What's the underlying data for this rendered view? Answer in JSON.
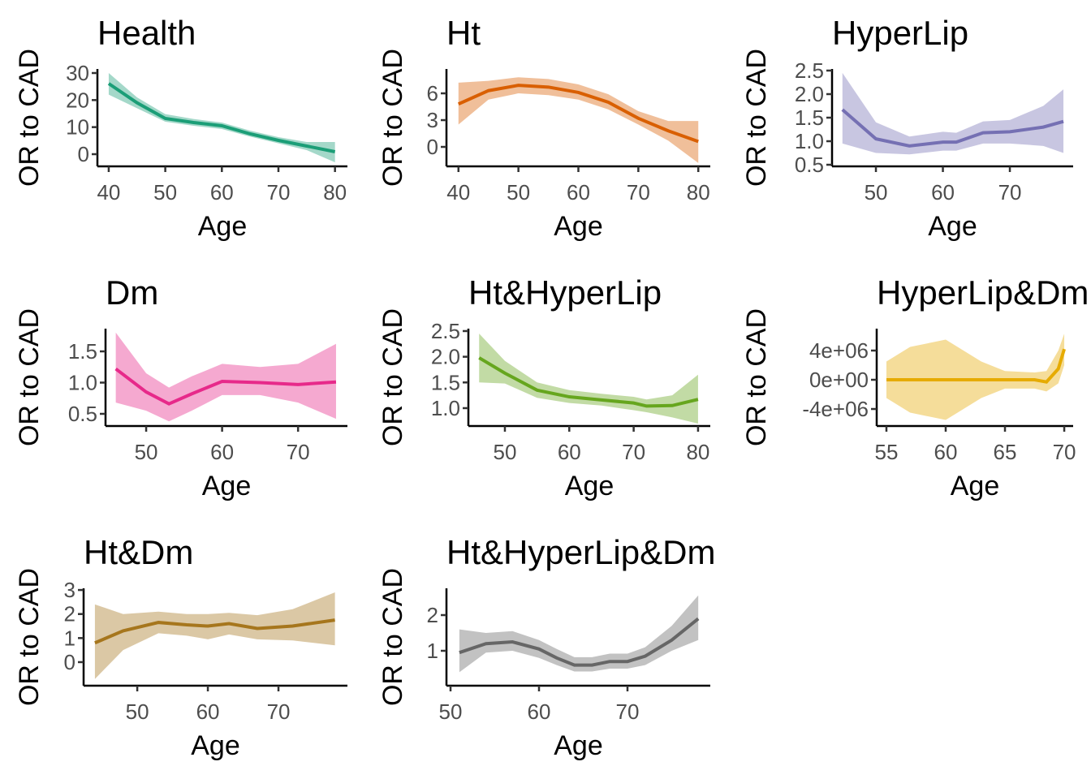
{
  "chart_data": [
    {
      "type": "line",
      "title": "Health",
      "xlabel": "Age",
      "ylabel": "OR to CAD",
      "color": "#1b9e77",
      "x": [
        40,
        45,
        50,
        55,
        60,
        65,
        70,
        75,
        80
      ],
      "values": [
        26.1,
        19,
        13.2,
        11.7,
        10.5,
        7.5,
        5.1,
        3,
        0.9
      ],
      "lower": [
        22,
        17,
        12,
        10.5,
        9.3,
        6.5,
        4,
        1.5,
        -3
      ],
      "upper": [
        30,
        21,
        14.8,
        13,
        11.7,
        8.7,
        6.3,
        4.5,
        4.5
      ],
      "xlim": [
        38,
        82.2
      ],
      "ylim": [
        -4.5,
        31.5
      ],
      "xticks": [
        40,
        50,
        60,
        70,
        80
      ],
      "yticks": [
        0,
        10,
        20,
        30
      ]
    },
    {
      "type": "line",
      "title": "Ht",
      "xlabel": "Age",
      "ylabel": "OR to CAD",
      "color": "#d95f02",
      "x": [
        40,
        45,
        50,
        55,
        60,
        65,
        70,
        75,
        80
      ],
      "values": [
        4.8,
        6.3,
        6.9,
        6.7,
        6.1,
        5.0,
        3.2,
        1.8,
        0.6
      ],
      "lower": [
        2.5,
        5.3,
        6.0,
        5.8,
        5.3,
        4.2,
        2.5,
        0.7,
        -1.8
      ],
      "upper": [
        7.2,
        7.4,
        7.8,
        7.6,
        7.0,
        5.9,
        4.0,
        2.9,
        2.9
      ],
      "xlim": [
        38,
        82
      ],
      "ylim": [
        -2.18,
        8.73
      ],
      "xticks": [
        40,
        50,
        60,
        70,
        80
      ],
      "yticks": [
        0,
        3,
        6
      ]
    },
    {
      "type": "line",
      "title": "HyperLip",
      "xlabel": "Age",
      "ylabel": "OR to CAD",
      "color": "#7570b3",
      "x": [
        45,
        50,
        55,
        60,
        62,
        66,
        70,
        75,
        78
      ],
      "values": [
        1.67,
        1.05,
        0.9,
        0.98,
        0.98,
        1.18,
        1.2,
        1.3,
        1.42
      ],
      "lower": [
        0.95,
        0.75,
        0.72,
        0.8,
        0.8,
        0.95,
        0.95,
        0.9,
        0.75
      ],
      "upper": [
        2.45,
        1.4,
        1.1,
        1.2,
        1.18,
        1.42,
        1.45,
        1.75,
        2.1
      ],
      "xlim": [
        43.45,
        79.45
      ],
      "ylim": [
        0.466,
        2.534
      ],
      "xticks": [
        50,
        60,
        70
      ],
      "yticks": [
        0.5,
        {
          "value": 1,
          "label": "1.0"
        },
        1.5,
        {
          "value": 2,
          "label": "2.0"
        },
        2.5
      ]
    },
    {
      "type": "line",
      "title": "Dm",
      "xlabel": "Age",
      "ylabel": "OR to CAD",
      "color": "#e7298a",
      "x": [
        46,
        50,
        53,
        56,
        60,
        65,
        70,
        75
      ],
      "values": [
        1.22,
        0.85,
        0.66,
        0.82,
        1.02,
        1.0,
        0.97,
        1.01
      ],
      "lower": [
        0.68,
        0.55,
        0.38,
        0.55,
        0.8,
        0.8,
        0.68,
        0.42
      ],
      "upper": [
        1.8,
        1.15,
        0.92,
        1.1,
        1.3,
        1.25,
        1.3,
        1.62
      ],
      "xlim": [
        44.65,
        76.5
      ],
      "ylim": [
        0.305,
        1.864
      ],
      "xticks": [
        50,
        60,
        70
      ],
      "yticks": [
        0.5,
        {
          "value": 1,
          "label": "1.0"
        },
        1.5
      ]
    },
    {
      "type": "line",
      "title": "Ht&HyperLip",
      "xlabel": "Age",
      "ylabel": "OR to CAD",
      "color": "#66a61e",
      "x": [
        46,
        50,
        55,
        60,
        65,
        70,
        72,
        76,
        80
      ],
      "values": [
        1.98,
        1.68,
        1.35,
        1.22,
        1.16,
        1.1,
        1.04,
        1.05,
        1.17
      ],
      "lower": [
        1.5,
        1.48,
        1.2,
        1.1,
        1.05,
        0.96,
        0.92,
        0.82,
        0.7
      ],
      "upper": [
        2.45,
        1.92,
        1.5,
        1.35,
        1.28,
        1.22,
        1.17,
        1.25,
        1.65
      ],
      "xlim": [
        44.33,
        81.9
      ],
      "ylim": [
        0.652,
        2.547
      ],
      "xticks": [
        50,
        60,
        70,
        80
      ],
      "yticks": [
        {
          "value": 1,
          "label": "1.0"
        },
        1.5,
        {
          "value": 2,
          "label": "2.0"
        },
        2.5
      ]
    },
    {
      "type": "line",
      "title": "HyperLip&Dm",
      "xlabel": "Age",
      "ylabel": "OR to CAD",
      "color": "#e6ab02",
      "x": [
        55,
        57,
        60,
        63,
        65,
        67.5,
        68.5,
        69.5,
        70
      ],
      "values": [
        0,
        0,
        0,
        0,
        0,
        0,
        -300000,
        1500000,
        4200000
      ],
      "lower": [
        -2500000,
        -4500000,
        -5500000,
        -2500000,
        -1200000,
        -1200000,
        -1600000,
        -500000,
        2000000
      ],
      "upper": [
        2500000,
        4500000,
        5500000,
        2500000,
        1200000,
        1000000,
        1200000,
        4000000,
        6300000
      ],
      "xlim": [
        54.18,
        70.75
      ],
      "ylim": [
        -6330000,
        7000000
      ],
      "xticks": [
        55,
        60,
        65,
        70
      ],
      "yticks": [
        {
          "value": -4000000,
          "label": "-4e+06"
        },
        {
          "value": 0,
          "label": "0e+00"
        },
        {
          "value": 4000000,
          "label": "4e+06"
        }
      ]
    },
    {
      "type": "line",
      "title": "Ht&Dm",
      "xlabel": "Age",
      "ylabel": "OR to CAD",
      "color": "#a6761d",
      "x": [
        44,
        48,
        53,
        57,
        60,
        63,
        67,
        72,
        78
      ],
      "values": [
        0.8,
        1.3,
        1.65,
        1.55,
        1.5,
        1.6,
        1.4,
        1.5,
        1.75
      ],
      "lower": [
        -0.7,
        0.5,
        1.2,
        1.1,
        0.95,
        1.15,
        0.95,
        0.9,
        0.7
      ],
      "upper": [
        2.4,
        2.0,
        2.1,
        2.0,
        2.0,
        2.05,
        1.95,
        2.2,
        2.9
      ],
      "xlim": [
        42.4,
        79.77
      ],
      "ylim": [
        -0.98,
        3.07
      ],
      "xticks": [
        50,
        60,
        70
      ],
      "yticks": [
        0,
        1,
        2,
        3
      ]
    },
    {
      "type": "line",
      "title": "Ht&HyperLip&Dm",
      "xlabel": "Age",
      "ylabel": "OR to CAD",
      "color": "#666666",
      "x": [
        51,
        54,
        57,
        60,
        62,
        64,
        66,
        68,
        70,
        72,
        75,
        78
      ],
      "values": [
        0.95,
        1.2,
        1.25,
        1.05,
        0.8,
        0.6,
        0.6,
        0.7,
        0.7,
        0.85,
        1.3,
        1.9
      ],
      "lower": [
        0.4,
        0.95,
        1.0,
        0.8,
        0.6,
        0.42,
        0.42,
        0.5,
        0.5,
        0.6,
        1.0,
        1.3
      ],
      "upper": [
        1.6,
        1.5,
        1.55,
        1.3,
        1.05,
        0.82,
        0.82,
        0.92,
        0.92,
        1.1,
        1.7,
        2.55
      ],
      "xlim": [
        49.54,
        79.36
      ],
      "ylim": [
        0.023,
        2.75
      ],
      "xticks": [
        50,
        60,
        70
      ],
      "yticks": [
        1,
        2
      ]
    }
  ]
}
